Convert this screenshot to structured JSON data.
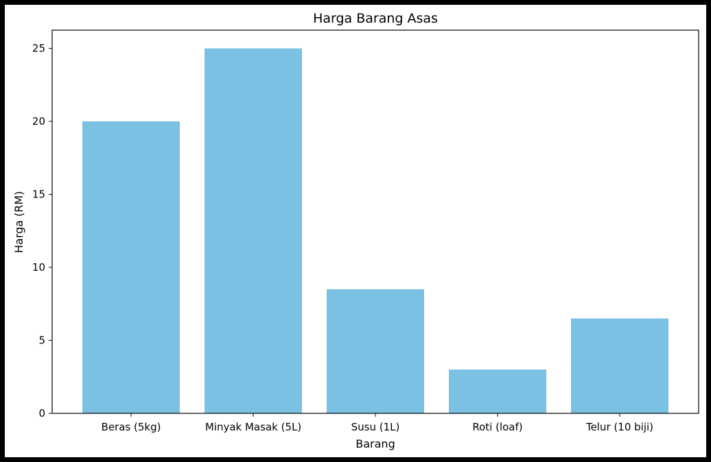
{
  "chart_data": {
    "type": "bar",
    "title": "Harga Barang Asas",
    "xlabel": "Barang",
    "ylabel": "Harga (RM)",
    "categories": [
      "Beras (5kg)",
      "Minyak Masak (5L)",
      "Susu (1L)",
      "Roti (loaf)",
      "Telur (10 biji)"
    ],
    "values": [
      20,
      25,
      8.5,
      3,
      6.5
    ],
    "ylim": [
      0,
      26.25
    ],
    "yticks": [
      0,
      5,
      10,
      15,
      20,
      25
    ],
    "bar_color": "#7ac1e4",
    "grid": false,
    "legend": "none"
  }
}
